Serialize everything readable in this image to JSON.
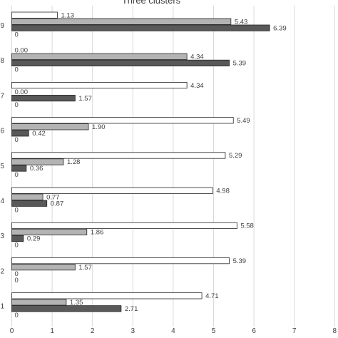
{
  "chart_data": {
    "type": "bar",
    "orientation": "horizontal",
    "title": "Three clusters",
    "xlabel": "",
    "ylabel": "",
    "xlim": [
      0,
      8
    ],
    "x_ticks": [
      "0",
      "1",
      "2",
      "3",
      "4",
      "5",
      "6",
      "7",
      "8"
    ],
    "grid": "vertical",
    "categories": [
      "1",
      "2",
      "3",
      "4",
      "5",
      "6",
      "7",
      "8",
      "9"
    ],
    "series": [
      {
        "color": "#ffffff",
        "values": [
          4.71,
          5.39,
          5.58,
          4.98,
          5.29,
          5.49,
          4.34,
          0.0,
          1.13
        ],
        "labels": [
          "4.71",
          "5.39",
          "5.58",
          "4.98",
          "5.29",
          "5.49",
          "4.34",
          "0.00",
          "1.13"
        ]
      },
      {
        "color": "#b3b3b3",
        "values": [
          1.35,
          1.57,
          1.86,
          0.77,
          1.28,
          1.9,
          0.0,
          4.34,
          5.43
        ],
        "labels": [
          "1.35",
          "1.57",
          "1.86",
          "0.77",
          "1.28",
          "1.90",
          "0.00",
          "4.34",
          "5.43"
        ]
      },
      {
        "color": "#595959",
        "values": [
          2.71,
          0,
          0.29,
          0.87,
          0.36,
          0.42,
          1.57,
          5.39,
          6.39
        ],
        "labels": [
          "2.71",
          "0",
          "0.29",
          "0.87",
          "0.36",
          "0.42",
          "1.57",
          "5.39",
          "6.39"
        ]
      },
      {
        "color": "#595959",
        "values": [
          0,
          0,
          0,
          0,
          0,
          0,
          0,
          0,
          0
        ],
        "labels": [
          "0",
          "0",
          "0",
          "0",
          "0",
          "0",
          "0",
          "0",
          "0"
        ]
      }
    ]
  }
}
